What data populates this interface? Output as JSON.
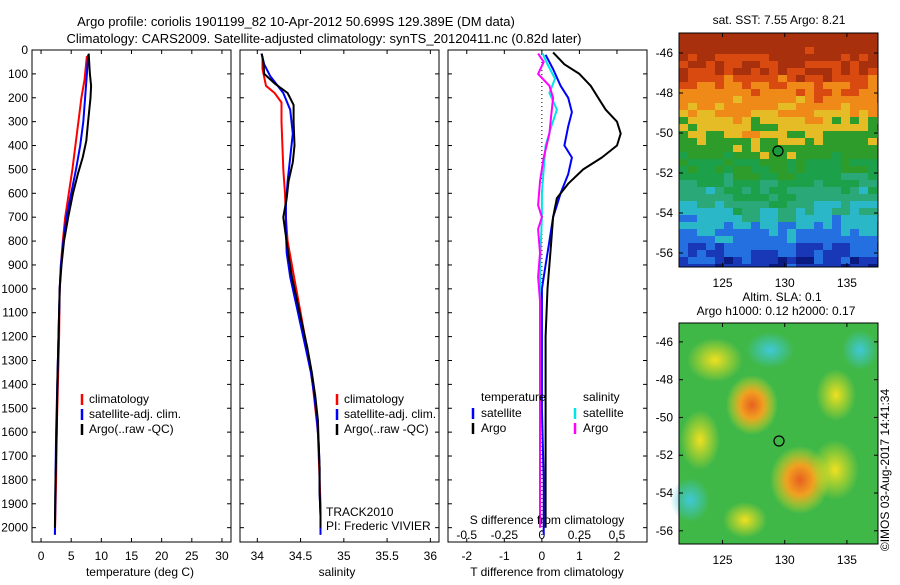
{
  "header": {
    "title_line1": "Argo profile: coriolis 1901199_82 10-Apr-2012 50.699S 129.389E (DM data)",
    "title_line2": "Climatology: CARS2009. Satellite-adjusted climatology: synTS_20120411.nc (0.82d later)"
  },
  "colors": {
    "climatology": "#ff0000",
    "satellite": "#0000ff",
    "argo": "#000000",
    "sal_satellite": "#00e5e5",
    "sal_argo": "#ff00ff"
  },
  "depth_axis": {
    "ticks": [
      0,
      100,
      200,
      300,
      400,
      500,
      600,
      700,
      800,
      900,
      1000,
      1100,
      1200,
      1300,
      1400,
      1500,
      1600,
      1700,
      1800,
      1900,
      2000
    ],
    "range": [
      0,
      2060
    ]
  },
  "panels": {
    "temperature": {
      "xlabel": "temperature (deg C)",
      "xticks": [
        0,
        5,
        10,
        15,
        20,
        25,
        30
      ],
      "xlim": [
        -1.5,
        31.5
      ]
    },
    "salinity": {
      "xlabel": "salinity",
      "xticks": [
        "34",
        "34.5",
        "35",
        "35.5",
        "36"
      ],
      "xlim": [
        33.8,
        36.1
      ]
    },
    "difference": {
      "xlabel": "T difference from climatology",
      "top_label": "S difference from climatology",
      "t_ticks": [
        "-2",
        "-1",
        "0",
        "1",
        "2"
      ],
      "s_ticks": [
        "-0.5",
        "-0.25",
        "0",
        "0.25",
        "0.5"
      ],
      "xlim": [
        -2.5,
        2.8
      ]
    }
  },
  "legend_ts": {
    "items": [
      {
        "key": "climatology",
        "label": "climatology"
      },
      {
        "key": "satellite",
        "label": "satellite-adj. clim."
      },
      {
        "key": "argo",
        "label": "Argo(..raw -QC)"
      }
    ]
  },
  "legend_diff": {
    "temp_header": "temperature",
    "sal_header": "salinity",
    "temp_items": [
      {
        "key": "satellite",
        "label": "satellite"
      },
      {
        "key": "argo",
        "label": "Argo"
      }
    ],
    "sal_items": [
      {
        "key": "sal_satellite",
        "label": "satellite"
      },
      {
        "key": "sal_argo",
        "label": "Argo"
      }
    ]
  },
  "track": {
    "line1": "TRACK2010",
    "line2": "PI: Frederic VIVIER"
  },
  "map_sst": {
    "title": "sat. SST: 7.55  Argo: 8.21",
    "yticks": [
      "-46",
      "-48",
      "-50",
      "-52",
      "-54",
      "-56"
    ],
    "xticks": [
      "125",
      "130",
      "135"
    ]
  },
  "map_sla": {
    "title_line1": "Altim. SLA: 0.1",
    "title_line2": "Argo h1000: 0.12 h2000: 0.17",
    "yticks": [
      "-46",
      "-48",
      "-50",
      "-52",
      "-54",
      "-56"
    ],
    "xticks": [
      "125",
      "130",
      "135"
    ]
  },
  "credit": "©IMOS 03-Aug-2017 14:41:34",
  "chart_data": [
    {
      "type": "line",
      "title": "",
      "xlabel": "temperature (deg C)",
      "ylabel": "",
      "y_reversed": true,
      "xlim": [
        -1.5,
        31.5
      ],
      "ylim": [
        0,
        2060
      ],
      "series": [
        {
          "name": "climatology",
          "color_key": "climatology",
          "points": [
            [
              7.6,
              25
            ],
            [
              7.4,
              75
            ],
            [
              7.2,
              125
            ],
            [
              6.7,
              200
            ],
            [
              6.2,
              300
            ],
            [
              5.7,
              400
            ],
            [
              5.2,
              500
            ],
            [
              4.6,
              600
            ],
            [
              4.0,
              700
            ],
            [
              3.6,
              800
            ],
            [
              3.3,
              900
            ],
            [
              3.1,
              1000
            ],
            [
              3.0,
              1200
            ],
            [
              2.8,
              1400
            ],
            [
              2.6,
              1600
            ],
            [
              2.5,
              1800
            ],
            [
              2.3,
              2030
            ]
          ]
        },
        {
          "name": "satellite-adj. clim.",
          "color_key": "satellite",
          "points": [
            [
              7.8,
              20
            ],
            [
              7.6,
              100
            ],
            [
              7.3,
              200
            ],
            [
              7.0,
              300
            ],
            [
              6.5,
              400
            ],
            [
              5.8,
              500
            ],
            [
              5.0,
              600
            ],
            [
              4.2,
              700
            ],
            [
              3.7,
              800
            ],
            [
              3.3,
              900
            ],
            [
              3.1,
              1000
            ],
            [
              2.9,
              1200
            ],
            [
              2.7,
              1400
            ],
            [
              2.5,
              1600
            ],
            [
              2.4,
              1800
            ],
            [
              2.3,
              2030
            ]
          ]
        },
        {
          "name": "Argo(..raw -QC)",
          "color_key": "argo",
          "points": [
            [
              7.9,
              15
            ],
            [
              8.0,
              60
            ],
            [
              8.1,
              100
            ],
            [
              8.3,
              150
            ],
            [
              8.2,
              200
            ],
            [
              8.0,
              250
            ],
            [
              7.8,
              300
            ],
            [
              7.5,
              380
            ],
            [
              6.9,
              450
            ],
            [
              6.1,
              520
            ],
            [
              5.3,
              600
            ],
            [
              4.5,
              700
            ],
            [
              3.8,
              800
            ],
            [
              3.4,
              900
            ],
            [
              3.1,
              1000
            ],
            [
              2.9,
              1200
            ],
            [
              2.7,
              1400
            ],
            [
              2.6,
              1600
            ],
            [
              2.4,
              1800
            ],
            [
              2.3,
              2000
            ]
          ]
        }
      ]
    },
    {
      "type": "line",
      "title": "",
      "xlabel": "salinity",
      "ylabel": "",
      "y_reversed": true,
      "xlim": [
        33.8,
        36.1
      ],
      "ylim": [
        0,
        2060
      ],
      "series": [
        {
          "name": "climatology",
          "color_key": "climatology",
          "points": [
            [
              34.06,
              25
            ],
            [
              34.06,
              80
            ],
            [
              34.1,
              150
            ],
            [
              34.2,
              180
            ],
            [
              34.28,
              220
            ],
            [
              34.28,
              300
            ],
            [
              34.29,
              400
            ],
            [
              34.3,
              500
            ],
            [
              34.32,
              600
            ],
            [
              34.33,
              700
            ],
            [
              34.35,
              800
            ],
            [
              34.4,
              900
            ],
            [
              34.45,
              1000
            ],
            [
              34.5,
              1100
            ],
            [
              34.55,
              1200
            ],
            [
              34.6,
              1300
            ],
            [
              34.64,
              1400
            ],
            [
              34.67,
              1500
            ],
            [
              34.7,
              1600
            ],
            [
              34.71,
              1700
            ],
            [
              34.72,
              1800
            ],
            [
              34.73,
              1900
            ],
            [
              34.73,
              2030
            ]
          ]
        },
        {
          "name": "satellite-adj. clim.",
          "color_key": "satellite",
          "points": [
            [
              34.05,
              15
            ],
            [
              34.08,
              60
            ],
            [
              34.15,
              110
            ],
            [
              34.3,
              180
            ],
            [
              34.38,
              250
            ],
            [
              34.41,
              350
            ],
            [
              34.38,
              450
            ],
            [
              34.35,
              550
            ],
            [
              34.33,
              650
            ],
            [
              34.33,
              750
            ],
            [
              34.34,
              850
            ],
            [
              34.38,
              950
            ],
            [
              34.44,
              1050
            ],
            [
              34.5,
              1150
            ],
            [
              34.56,
              1250
            ],
            [
              34.62,
              1350
            ],
            [
              34.66,
              1450
            ],
            [
              34.69,
              1550
            ],
            [
              34.71,
              1650
            ],
            [
              34.72,
              1750
            ],
            [
              34.72,
              1850
            ],
            [
              34.73,
              1950
            ],
            [
              34.73,
              2030
            ]
          ]
        },
        {
          "name": "Argo(..raw -QC)",
          "color_key": "argo",
          "points": [
            [
              34.05,
              15
            ],
            [
              34.07,
              50
            ],
            [
              34.08,
              100
            ],
            [
              34.2,
              140
            ],
            [
              34.35,
              180
            ],
            [
              34.42,
              230
            ],
            [
              34.42,
              300
            ],
            [
              34.43,
              400
            ],
            [
              34.41,
              470
            ],
            [
              34.36,
              550
            ],
            [
              34.34,
              620
            ],
            [
              34.3,
              700
            ],
            [
              34.33,
              780
            ],
            [
              34.36,
              860
            ],
            [
              34.4,
              950
            ],
            [
              34.46,
              1050
            ],
            [
              34.52,
              1150
            ],
            [
              34.58,
              1250
            ],
            [
              34.63,
              1350
            ],
            [
              34.67,
              1450
            ],
            [
              34.7,
              1550
            ],
            [
              34.71,
              1650
            ],
            [
              34.72,
              1750
            ],
            [
              34.72,
              1850
            ],
            [
              34.73,
              1950
            ],
            [
              34.73,
              2000
            ]
          ]
        }
      ]
    },
    {
      "type": "line",
      "title": "S difference from climatology",
      "xlabel": "T difference from climatology",
      "ylabel": "",
      "y_reversed": true,
      "xlim": [
        -2.5,
        2.8
      ],
      "ylim": [
        0,
        2060
      ],
      "series": [
        {
          "name": "temperature satellite",
          "color_key": "satellite",
          "points": [
            [
              0.1,
              20
            ],
            [
              0.3,
              80
            ],
            [
              0.5,
              150
            ],
            [
              0.7,
              200
            ],
            [
              0.8,
              260
            ],
            [
              0.7,
              320
            ],
            [
              0.6,
              400
            ],
            [
              0.8,
              450
            ],
            [
              0.7,
              520
            ],
            [
              0.5,
              600
            ],
            [
              0.4,
              650
            ],
            [
              0.3,
              700
            ],
            [
              0.2,
              800
            ],
            [
              0.1,
              900
            ],
            [
              0.0,
              1000
            ],
            [
              0.0,
              1200
            ],
            [
              0.0,
              1500
            ],
            [
              0.05,
              1800
            ],
            [
              0.05,
              2030
            ]
          ]
        },
        {
          "name": "temperature Argo",
          "color_key": "argo",
          "points": [
            [
              0.3,
              10
            ],
            [
              0.6,
              60
            ],
            [
              1.0,
              100
            ],
            [
              1.3,
              150
            ],
            [
              1.5,
              200
            ],
            [
              1.7,
              250
            ],
            [
              2.0,
              300
            ],
            [
              2.1,
              350
            ],
            [
              2.0,
              400
            ],
            [
              1.6,
              450
            ],
            [
              1.1,
              500
            ],
            [
              0.7,
              560
            ],
            [
              0.4,
              620
            ],
            [
              0.3,
              700
            ],
            [
              0.25,
              800
            ],
            [
              0.2,
              900
            ],
            [
              0.15,
              1000
            ],
            [
              0.1,
              1200
            ],
            [
              0.1,
              1500
            ],
            [
              0.1,
              1800
            ],
            [
              0.1,
              2000
            ]
          ]
        },
        {
          "name": "salinity satellite",
          "color_key": "sal_satellite",
          "points": [
            [
              0.02,
              15
            ],
            [
              0.15,
              60
            ],
            [
              0.35,
              120
            ],
            [
              0.2,
              180
            ],
            [
              0.4,
              250
            ],
            [
              0.25,
              320
            ],
            [
              0.1,
              400
            ],
            [
              0.05,
              500
            ],
            [
              0.0,
              600
            ],
            [
              0.0,
              700
            ],
            [
              -0.05,
              900
            ],
            [
              -0.05,
              1100
            ],
            [
              -0.05,
              1400
            ],
            [
              -0.05,
              1700
            ],
            [
              -0.05,
              2000
            ]
          ]
        },
        {
          "name": "salinity Argo",
          "color_key": "sal_argo",
          "points": [
            [
              -0.1,
              15
            ],
            [
              0.05,
              50
            ],
            [
              -0.1,
              100
            ],
            [
              0.2,
              150
            ],
            [
              0.3,
              200
            ],
            [
              0.25,
              270
            ],
            [
              0.2,
              350
            ],
            [
              0.05,
              450
            ],
            [
              -0.05,
              550
            ],
            [
              -0.1,
              650
            ],
            [
              0.0,
              700
            ],
            [
              -0.1,
              750
            ],
            [
              -0.05,
              850
            ],
            [
              -0.1,
              950
            ],
            [
              -0.05,
              1050
            ],
            [
              -0.05,
              1200
            ],
            [
              -0.05,
              1400
            ],
            [
              -0.05,
              1600
            ],
            [
              -0.05,
              1800
            ],
            [
              -0.05,
              2000
            ]
          ]
        }
      ]
    }
  ]
}
